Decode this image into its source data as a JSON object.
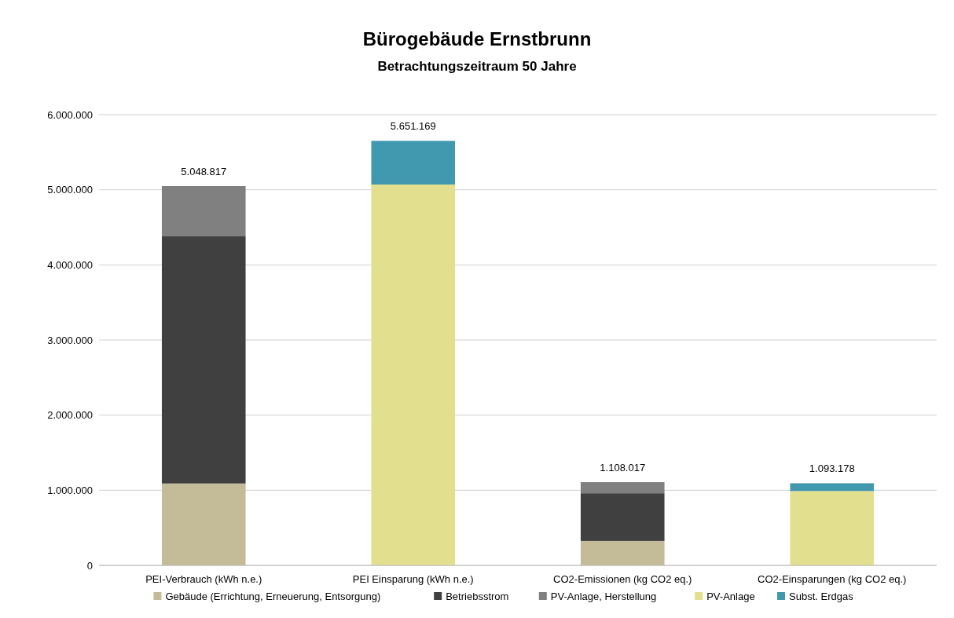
{
  "chart_data": {
    "type": "bar",
    "title": "Bürogebäude Ernstbrunn",
    "subtitle": "Betrachtungszeitraum 50 Jahre",
    "categories": [
      "PEI-Verbrauch (kWh n.e.)",
      "PEI Einsparung (kWh n.e.)",
      "CO2-Emissionen (kg CO2 eq.)",
      "CO2-Einsparungen (kg CO2 eq.)"
    ],
    "stacked": true,
    "series": [
      {
        "name": "Gebäude (Errichtung, Erneuerung, Entsorgung)",
        "color": "#c4bb98",
        "values": [
          1090000,
          0,
          325000,
          0
        ]
      },
      {
        "name": "Betriebsstrom",
        "color": "#404040",
        "values": [
          3290000,
          0,
          635000,
          0
        ]
      },
      {
        "name": "PV-Anlage, Herstellung",
        "color": "#808080",
        "values": [
          668817,
          0,
          148017,
          0
        ]
      },
      {
        "name": "PV-Anlage",
        "color": "#e2e08e",
        "values": [
          0,
          5070000,
          0,
          990000
        ]
      },
      {
        "name": "Subst. Erdgas",
        "color": "#4199b0",
        "values": [
          0,
          581169,
          0,
          103178
        ]
      }
    ],
    "totals": [
      "5.048.817",
      "5.651.169",
      "1.108.017",
      "1.093.178"
    ],
    "ylim": [
      0,
      6000000
    ],
    "yticks": [
      {
        "value": 0,
        "label": "0"
      },
      {
        "value": 1000000,
        "label": "1.000.000"
      },
      {
        "value": 2000000,
        "label": "2.000.000"
      },
      {
        "value": 3000000,
        "label": "3.000.000"
      },
      {
        "value": 4000000,
        "label": "4.000.000"
      },
      {
        "value": 5000000,
        "label": "5.000.000"
      },
      {
        "value": 6000000,
        "label": "6.000.000"
      }
    ],
    "grid": "y",
    "legend": "bottom"
  }
}
